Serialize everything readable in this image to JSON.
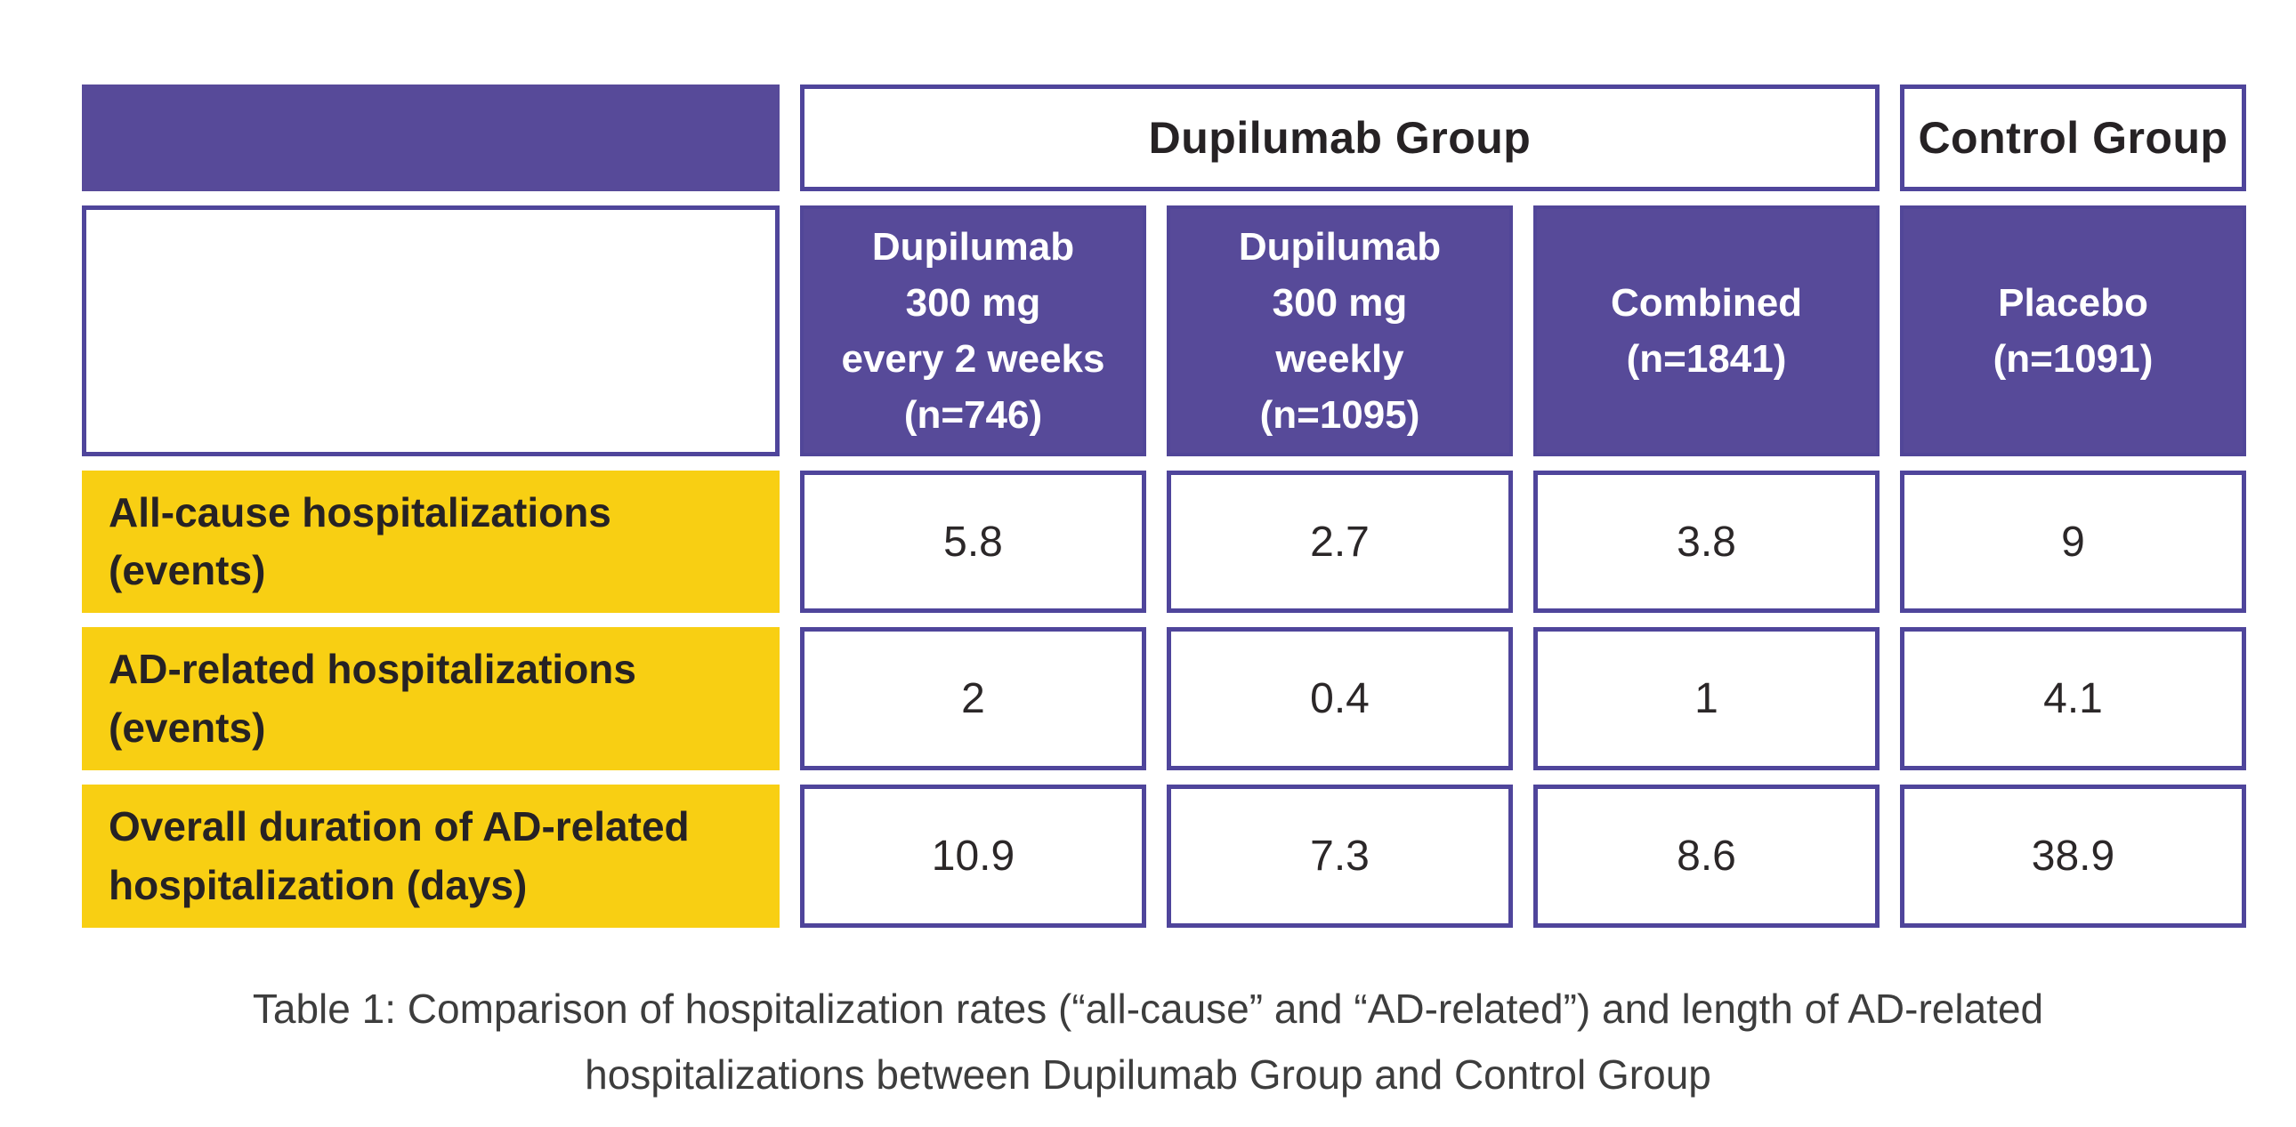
{
  "colors": {
    "purple_fill": "#574a99",
    "purple_border": "#4f459b",
    "yellow_fill": "#f8cf13",
    "dark_text": "#262224",
    "white_text": "#ffffff",
    "caption_text": "#3d3d3d",
    "background": "#ffffff"
  },
  "table": {
    "group_headers": {
      "dupilumab": "Dupilumab Group",
      "control": "Control Group"
    },
    "column_headers": [
      "Dupilumab\n300 mg\nevery 2 weeks\n(n=746)",
      "Dupilumab\n300 mg\nweekly\n(n=1095)",
      "Combined\n(n=1841)",
      "Placebo\n(n=1091)"
    ],
    "rows": [
      {
        "label": "All-cause hospitalizations (events)",
        "values": [
          "5.8",
          "2.7",
          "3.8",
          "9"
        ]
      },
      {
        "label": "AD-related hospitalizations (events)",
        "values": [
          "2",
          "0.4",
          "1",
          "4.1"
        ]
      },
      {
        "label": "Overall duration of AD-related hospitalization (days)",
        "values": [
          "10.9",
          "7.3",
          "8.6",
          "38.9"
        ]
      }
    ]
  },
  "caption": {
    "line1": "Table 1: Comparison of hospitalization rates (“all-cause” and “AD-related”) and length of AD-related",
    "line2": "hospitalizations between Dupilumab Group and Control Group"
  },
  "chart_data": {
    "type": "table",
    "title": "Table 1: Comparison of hospitalization rates (“all-cause” and “AD-related”) and length of AD-related hospitalizations between Dupilumab Group and Control Group",
    "column_groups": [
      {
        "label": "Dupilumab Group",
        "span": 3
      },
      {
        "label": "Control Group",
        "span": 1
      }
    ],
    "columns": [
      "Dupilumab 300 mg every 2 weeks (n=746)",
      "Dupilumab 300 mg weekly (n=1095)",
      "Combined (n=1841)",
      "Placebo (n=1091)"
    ],
    "row_labels": [
      "All-cause hospitalizations (events)",
      "AD-related hospitalizations (events)",
      "Overall duration of AD-related hospitalization (days)"
    ],
    "values": [
      [
        5.8,
        2.7,
        3.8,
        9
      ],
      [
        2,
        0.4,
        1,
        4.1
      ],
      [
        10.9,
        7.3,
        8.6,
        38.9
      ]
    ]
  }
}
